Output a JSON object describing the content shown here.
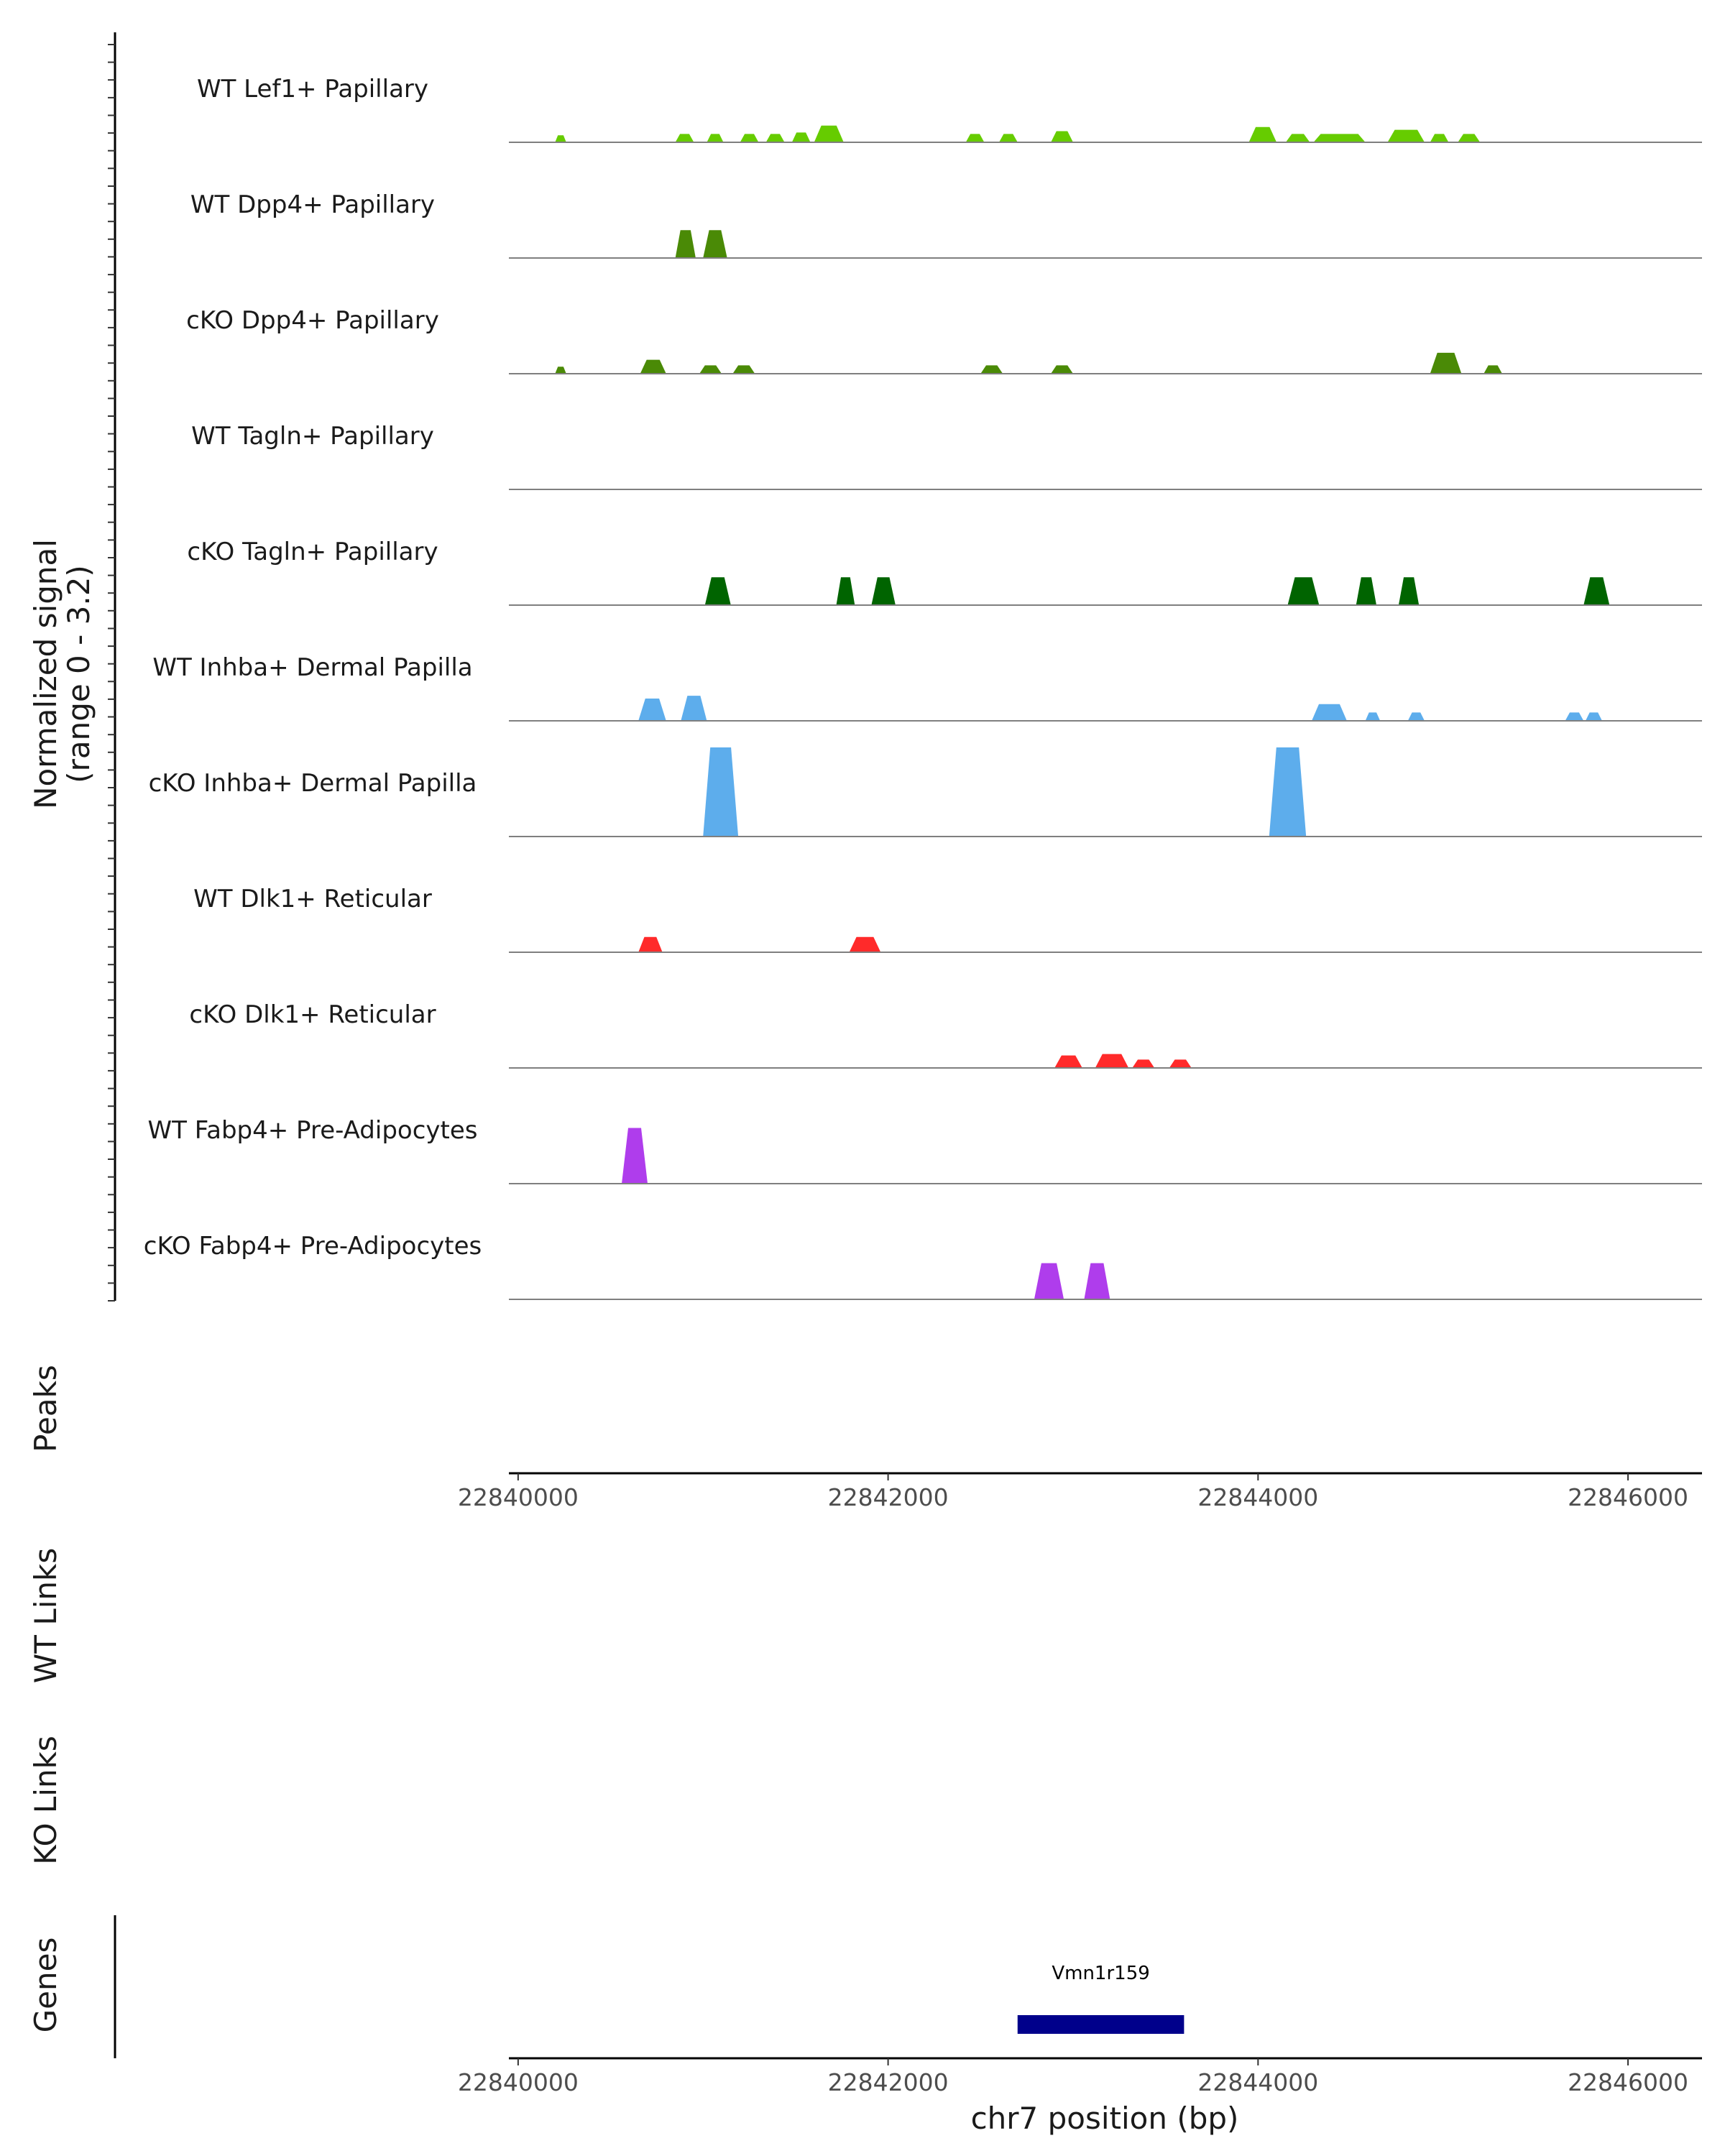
{
  "chart_data": {
    "type": "area",
    "title": "",
    "chromosome": "chr7",
    "xlim": [
      22839950,
      22846400
    ],
    "xlabel": "chr7 position (bp)",
    "ylabel_line1": "Normalized signal",
    "ylabel_line2": "(range 0 - 3.2)",
    "ylim": [
      0,
      3.2
    ],
    "x_ticks": [
      22840000,
      22842000,
      22844000,
      22846000
    ],
    "x_tick_labels": [
      "22840000",
      "22842000",
      "22844000",
      "22846000"
    ],
    "grid": false,
    "tracks": [
      {
        "name": "WT Lef1+ Papillary",
        "color": "#66CC00",
        "peaks": [
          [
            22840200,
            22840260,
            0.25
          ],
          [
            22840850,
            22840950,
            0.3
          ],
          [
            22841020,
            22841110,
            0.3
          ],
          [
            22841200,
            22841300,
            0.3
          ],
          [
            22841340,
            22841440,
            0.3
          ],
          [
            22841480,
            22841580,
            0.35
          ],
          [
            22841600,
            22841760,
            0.6
          ],
          [
            22842420,
            22842520,
            0.3
          ],
          [
            22842600,
            22842700,
            0.3
          ],
          [
            22842880,
            22843000,
            0.4
          ],
          [
            22843950,
            22844100,
            0.55
          ],
          [
            22844150,
            22844280,
            0.3
          ],
          [
            22844300,
            22844580,
            0.3
          ],
          [
            22844700,
            22844900,
            0.45
          ],
          [
            22844930,
            22845030,
            0.3
          ],
          [
            22845080,
            22845200,
            0.3
          ]
        ]
      },
      {
        "name": "WT Dpp4+ Papillary",
        "color": "#4A8A06",
        "peaks": [
          [
            22840850,
            22840960,
            1.0
          ],
          [
            22841000,
            22841130,
            1.0
          ]
        ]
      },
      {
        "name": "cKO Dpp4+ Papillary",
        "color": "#4A8A06",
        "peaks": [
          [
            22840200,
            22840260,
            0.25
          ],
          [
            22840660,
            22840800,
            0.5
          ],
          [
            22840980,
            22841100,
            0.3
          ],
          [
            22841160,
            22841280,
            0.3
          ],
          [
            22842500,
            22842620,
            0.3
          ],
          [
            22842880,
            22843000,
            0.3
          ],
          [
            22844930,
            22845100,
            0.75
          ],
          [
            22845220,
            22845320,
            0.3
          ]
        ]
      },
      {
        "name": "WT Tagln+ Papillary",
        "color": "#006400",
        "peaks": []
      },
      {
        "name": "cKO Tagln+ Papillary",
        "color": "#006400",
        "peaks": [
          [
            22841010,
            22841150,
            1.0
          ],
          [
            22841720,
            22841820,
            1.0
          ],
          [
            22841910,
            22842040,
            1.0
          ],
          [
            22844160,
            22844330,
            1.0
          ],
          [
            22844530,
            22844640,
            1.0
          ],
          [
            22844760,
            22844870,
            1.0
          ],
          [
            22845760,
            22845900,
            1.0
          ]
        ]
      },
      {
        "name": "WT Inhba+ Dermal Papilla",
        "color": "#5DADEC",
        "peaks": [
          [
            22840650,
            22840800,
            0.8
          ],
          [
            22840880,
            22841020,
            0.9
          ],
          [
            22844290,
            22844480,
            0.6
          ],
          [
            22844580,
            22844660,
            0.3
          ],
          [
            22844810,
            22844900,
            0.3
          ],
          [
            22845660,
            22845760,
            0.3
          ],
          [
            22845770,
            22845860,
            0.3
          ]
        ]
      },
      {
        "name": "cKO Inhba+ Dermal Papilla",
        "color": "#5DADEC",
        "peaks": [
          [
            22841000,
            22841190,
            3.2
          ],
          [
            22844060,
            22844260,
            3.2
          ]
        ]
      },
      {
        "name": "WT Dlk1+ Reticular",
        "color": "#FF2A2A",
        "peaks": [
          [
            22840650,
            22840780,
            0.55
          ],
          [
            22841790,
            22841960,
            0.55
          ]
        ]
      },
      {
        "name": "cKO Dlk1+ Reticular",
        "color": "#FF2A2A",
        "peaks": [
          [
            22842900,
            22843050,
            0.45
          ],
          [
            22843120,
            22843300,
            0.5
          ],
          [
            22843320,
            22843440,
            0.3
          ],
          [
            22843520,
            22843640,
            0.3
          ]
        ]
      },
      {
        "name": "WT Fabp4+ Pre-Adipocytes",
        "color": "#AF3DEC",
        "peaks": [
          [
            22840560,
            22840700,
            2.0
          ]
        ]
      },
      {
        "name": "cKO Fabp4+ Pre-Adipocytes",
        "color": "#AF3DEC",
        "peaks": [
          [
            22842790,
            22842950,
            1.3
          ],
          [
            22843060,
            22843200,
            1.3
          ]
        ]
      }
    ],
    "peaks_label": "Peaks",
    "wt_links_label": "WT Links",
    "ko_links_label": "KO Links",
    "genes_label": "Genes",
    "genes": [
      {
        "name": "Vmn1r159",
        "start": 22842700,
        "end": 22843600,
        "color": "#00008B"
      }
    ]
  }
}
